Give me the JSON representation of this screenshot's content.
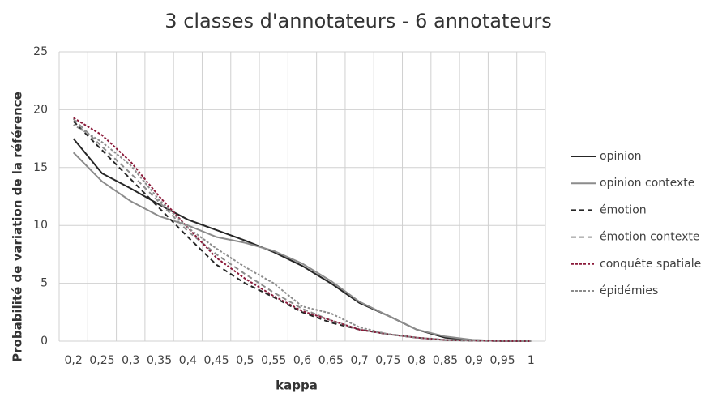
{
  "chart_data": {
    "type": "line",
    "title": "3 classes d'annotateurs - 6 annotateurs",
    "x_label": "kappa",
    "y_label": "Probabilité de variation de la référence",
    "categories": [
      "0,2",
      "0,25",
      "0,3",
      "0,35",
      "0,4",
      "0,45",
      "0,5",
      "0,55",
      "0,6",
      "0,65",
      "0,7",
      "0,75",
      "0,8",
      "0,85",
      "0,9",
      "0,95",
      "1"
    ],
    "series": [
      {
        "name": "opinion",
        "color": "#262626",
        "dash": "solid",
        "values": [
          17.5,
          14.5,
          13.2,
          11.8,
          10.5,
          9.6,
          8.7,
          7.7,
          6.5,
          5.0,
          3.3,
          2.2,
          1.0,
          0.3,
          0.1,
          0.02,
          0
        ]
      },
      {
        "name": "opinion contexte",
        "color": "#8c8c8c",
        "dash": "solid",
        "values": [
          16.3,
          13.8,
          12.1,
          10.8,
          10.0,
          9.0,
          8.5,
          7.8,
          6.7,
          5.2,
          3.4,
          2.2,
          1.0,
          0.4,
          0.1,
          0.03,
          0
        ]
      },
      {
        "name": "émotion",
        "color": "#262626",
        "dash": "dash",
        "values": [
          19.0,
          16.5,
          14.0,
          11.5,
          9.0,
          6.6,
          5.0,
          3.8,
          2.5,
          1.6,
          1.0,
          0.6,
          0.3,
          0.1,
          0.03,
          0.01,
          0
        ]
      },
      {
        "name": "émotion contexte",
        "color": "#8c8c8c",
        "dash": "dash",
        "values": [
          19.2,
          16.8,
          14.5,
          12.0,
          9.5,
          7.5,
          5.8,
          4.2,
          2.8,
          1.8,
          1.0,
          0.6,
          0.3,
          0.1,
          0.05,
          0.02,
          0
        ]
      },
      {
        "name": "conquête spatiale",
        "color": "#8b1a3a",
        "dash": "dot",
        "values": [
          19.3,
          17.8,
          15.5,
          12.5,
          9.8,
          7.2,
          5.4,
          3.9,
          2.6,
          1.8,
          1.0,
          0.6,
          0.3,
          0.1,
          0.05,
          0.02,
          0
        ]
      },
      {
        "name": "épidémies",
        "color": "#8c8c8c",
        "dash": "dot",
        "values": [
          18.7,
          17.2,
          15.2,
          12.2,
          9.8,
          8.0,
          6.4,
          5.0,
          3.0,
          2.4,
          1.2,
          0.6,
          0.3,
          0.1,
          0.05,
          0.02,
          0
        ]
      }
    ],
    "ylim": [
      0,
      25
    ],
    "yticks": [
      0,
      5,
      10,
      15,
      20,
      25
    ],
    "grid": true,
    "legend": "right"
  }
}
